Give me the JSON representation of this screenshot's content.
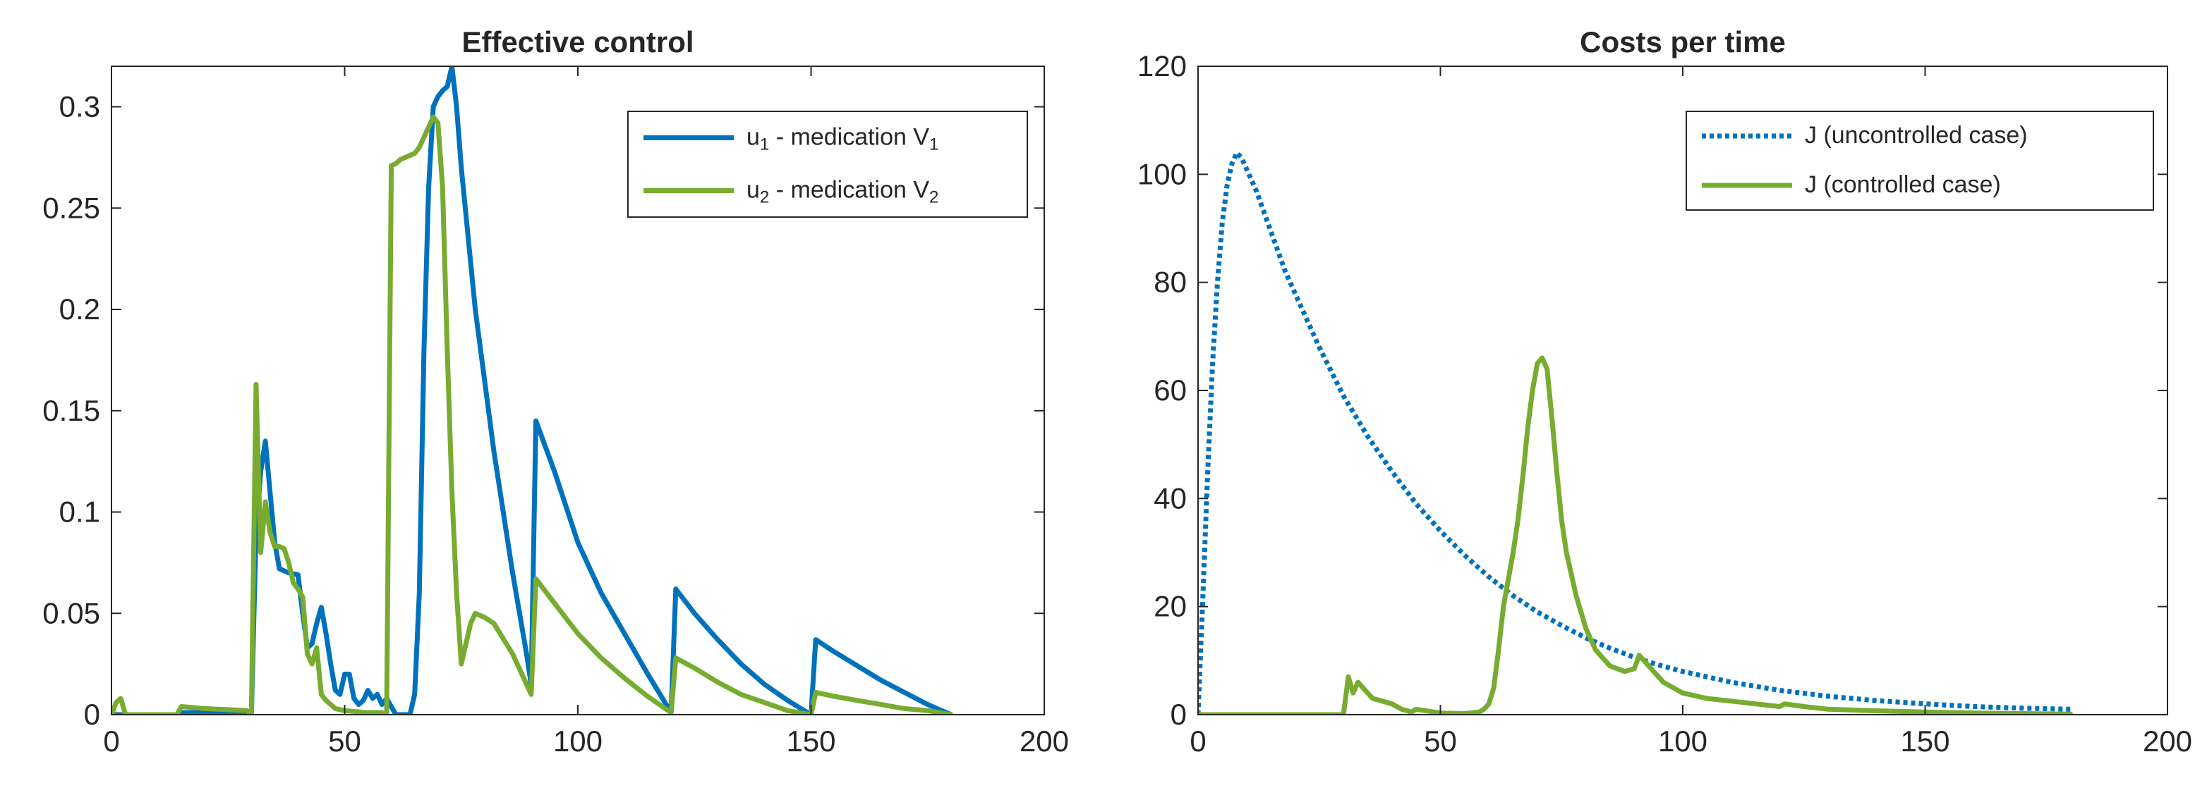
{
  "chart_data": [
    {
      "type": "line",
      "title": "Effective control",
      "xlabel": "",
      "ylabel": "",
      "xlim": [
        0,
        200
      ],
      "ylim": [
        0,
        0.32
      ],
      "xticks": [
        0,
        50,
        100,
        150,
        200
      ],
      "yticks": [
        0,
        0.05,
        0.1,
        0.15,
        0.2,
        0.25,
        0.3
      ],
      "xtick_labels": [
        "0",
        "50",
        "100",
        "150",
        "200"
      ],
      "ytick_labels": [
        "0",
        "0.05",
        "0.1",
        "0.15",
        "0.2",
        "0.25",
        "0.3"
      ],
      "legend_position": "top-right",
      "series": [
        {
          "name": "u1 - medication V1",
          "legend": {
            "main": "u",
            "sub1": "1",
            "mid": " - medication V",
            "sub2": "1"
          },
          "color": "#0072BD",
          "dash": "solid",
          "x": [
            0,
            1,
            14,
            15,
            28,
            30,
            31,
            32,
            33,
            34,
            35,
            36,
            38,
            40,
            41,
            42,
            43,
            44,
            45,
            46,
            47,
            48,
            49,
            50,
            51,
            52,
            53,
            54,
            55,
            56,
            57,
            58,
            59,
            60,
            61,
            64,
            65,
            66,
            67,
            68,
            69,
            70,
            71,
            72,
            73,
            74,
            75,
            78,
            82,
            86,
            89,
            90,
            91,
            95,
            100,
            105,
            110,
            115,
            120,
            121,
            125,
            130,
            135,
            140,
            145,
            150,
            151,
            155,
            160,
            165,
            170,
            175,
            180
          ],
          "y": [
            0,
            0,
            0,
            0.001,
            0.001,
            0,
            0.09,
            0.12,
            0.135,
            0.11,
            0.085,
            0.072,
            0.07,
            0.069,
            0.05,
            0.033,
            0.035,
            0.045,
            0.053,
            0.04,
            0.025,
            0.012,
            0.01,
            0.02,
            0.02,
            0.008,
            0.005,
            0.007,
            0.012,
            0.008,
            0.01,
            0.005,
            0.008,
            0.004,
            0,
            0,
            0.01,
            0.06,
            0.18,
            0.26,
            0.3,
            0.305,
            0.308,
            0.31,
            0.32,
            0.3,
            0.27,
            0.2,
            0.13,
            0.07,
            0.03,
            0.015,
            0.145,
            0.12,
            0.085,
            0.06,
            0.04,
            0.02,
            0.001,
            0.062,
            0.05,
            0.037,
            0.025,
            0.015,
            0.007,
            0,
            0.037,
            0.031,
            0.024,
            0.017,
            0.011,
            0.005,
            0
          ]
        },
        {
          "name": "u2 - medication V2",
          "legend": {
            "main": "u",
            "sub1": "2",
            "mid": " - medication V",
            "sub2": "2"
          },
          "color": "#77AC30",
          "dash": "solid",
          "x": [
            0,
            1,
            2,
            3,
            14,
            15,
            20,
            29,
            30,
            31,
            32,
            33,
            34,
            35,
            36,
            37,
            38,
            39,
            40,
            41,
            42,
            43,
            44,
            45,
            46,
            47,
            48,
            50,
            55,
            58,
            59,
            60,
            61,
            62,
            63,
            64,
            65,
            66,
            67,
            68,
            69,
            70,
            71,
            72,
            73,
            74,
            75,
            76,
            77,
            78,
            80,
            82,
            86,
            89,
            90,
            91,
            95,
            100,
            105,
            110,
            115,
            120,
            121,
            125,
            130,
            135,
            140,
            145,
            150,
            151,
            155,
            160,
            165,
            170,
            175,
            180
          ],
          "y": [
            0,
            0.006,
            0.008,
            0,
            0,
            0.004,
            0.003,
            0.002,
            0,
            0.163,
            0.08,
            0.105,
            0.09,
            0.083,
            0.083,
            0.082,
            0.075,
            0.065,
            0.062,
            0.058,
            0.03,
            0.025,
            0.033,
            0.01,
            0.007,
            0.005,
            0.003,
            0.002,
            0.001,
            0.001,
            0,
            0.271,
            0.272,
            0.274,
            0.275,
            0.276,
            0.277,
            0.28,
            0.285,
            0.29,
            0.295,
            0.292,
            0.26,
            0.18,
            0.11,
            0.06,
            0.025,
            0.035,
            0.045,
            0.05,
            0.048,
            0.045,
            0.03,
            0.015,
            0.01,
            0.067,
            0.055,
            0.04,
            0.028,
            0.018,
            0.009,
            0.001,
            0.028,
            0.023,
            0.016,
            0.01,
            0.006,
            0.002,
            0,
            0.011,
            0.009,
            0.007,
            0.005,
            0.003,
            0.002,
            0
          ]
        }
      ]
    },
    {
      "type": "line",
      "title": "Costs per time",
      "xlabel": "",
      "ylabel": "",
      "xlim": [
        0,
        200
      ],
      "ylim": [
        0,
        120
      ],
      "xticks": [
        0,
        50,
        100,
        150,
        200
      ],
      "yticks": [
        0,
        20,
        40,
        60,
        80,
        100,
        120
      ],
      "xtick_labels": [
        "0",
        "50",
        "100",
        "150",
        "200"
      ],
      "ytick_labels": [
        "0",
        "20",
        "40",
        "60",
        "80",
        "100",
        "120"
      ],
      "legend_position": "top-right",
      "series": [
        {
          "name": "J (uncontrolled case)",
          "legend": {
            "main": "J (uncontrolled case)"
          },
          "color": "#0072BD",
          "dash": "dotted",
          "x": [
            0,
            1,
            2,
            3,
            4,
            5,
            6,
            7,
            8,
            9,
            10,
            12,
            14,
            16,
            18,
            20,
            25,
            30,
            35,
            40,
            45,
            50,
            55,
            60,
            65,
            70,
            75,
            80,
            85,
            90,
            95,
            100,
            110,
            120,
            130,
            140,
            150,
            160,
            170,
            180
          ],
          "y": [
            0,
            22,
            45,
            65,
            80,
            91,
            98,
            102,
            104,
            103,
            101,
            97,
            92,
            87,
            82,
            78,
            68,
            59,
            51.5,
            45,
            39,
            34,
            29.5,
            25.5,
            22,
            19,
            16.5,
            14.2,
            12.3,
            10.6,
            9.2,
            8,
            6,
            4.5,
            3.4,
            2.6,
            2,
            1.5,
            1.2,
            1
          ]
        },
        {
          "name": "J (controlled case)",
          "legend": {
            "main": "J (controlled case)"
          },
          "color": "#77AC30",
          "dash": "solid",
          "x": [
            0,
            30,
            31,
            32,
            33,
            34,
            35,
            36,
            38,
            40,
            42,
            44,
            45,
            50,
            55,
            58,
            59,
            60,
            61,
            62,
            63,
            64,
            65,
            66,
            67,
            68,
            69,
            70,
            71,
            72,
            73,
            74,
            75,
            76,
            78,
            80,
            82,
            85,
            88,
            90,
            91,
            92,
            94,
            96,
            100,
            105,
            110,
            115,
            120,
            121,
            125,
            130,
            140,
            150,
            160,
            170,
            180
          ],
          "y": [
            0,
            0,
            7,
            4,
            6,
            5,
            4,
            3,
            2.5,
            2,
            1,
            0.5,
            1,
            0.3,
            0.2,
            0.5,
            1,
            2,
            5,
            12,
            20,
            25,
            30,
            36,
            44,
            53,
            60,
            65,
            66,
            64,
            55,
            45,
            36,
            30,
            22,
            16,
            12,
            9,
            8,
            8.5,
            11,
            10,
            8,
            6,
            4,
            3,
            2.5,
            2,
            1.5,
            2,
            1.5,
            1,
            0.7,
            0.5,
            0.3,
            0.2,
            0.1
          ]
        }
      ]
    }
  ]
}
